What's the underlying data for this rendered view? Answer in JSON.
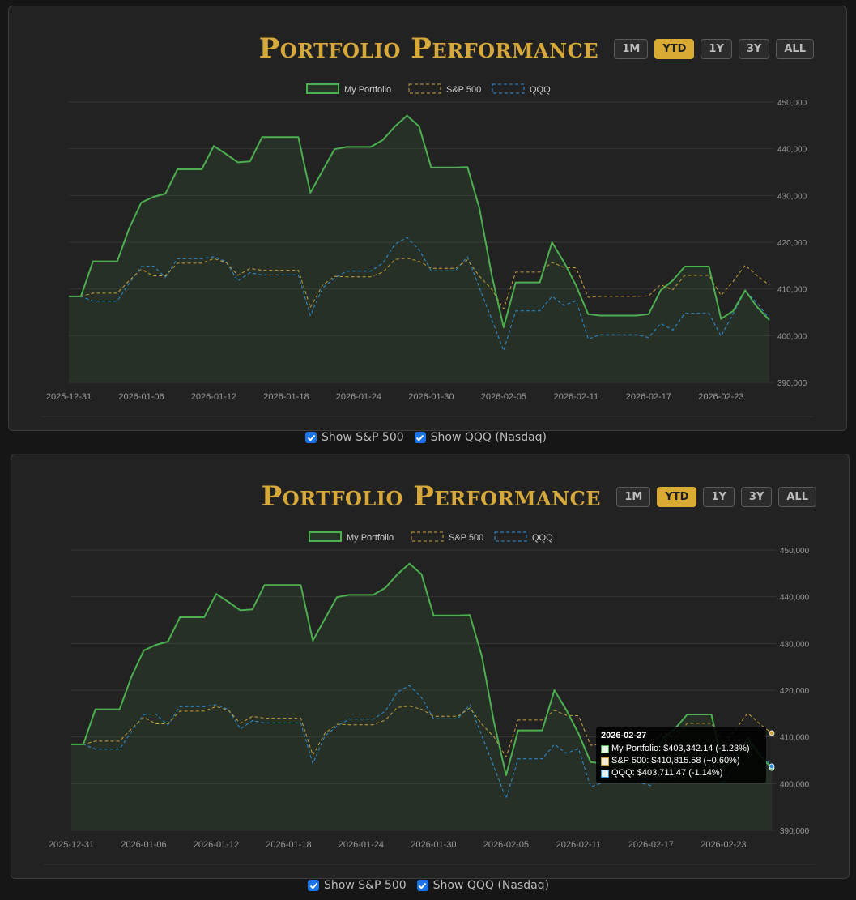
{
  "panels": [
    {
      "title": "Portfolio Performance",
      "range_buttons": [
        {
          "label": "1M",
          "active": false
        },
        {
          "label": "YTD",
          "active": true
        },
        {
          "label": "1Y",
          "active": false
        },
        {
          "label": "3Y",
          "active": false
        },
        {
          "label": "ALL",
          "active": false
        }
      ],
      "checkboxes": [
        {
          "label": "Show S&P 500",
          "checked": true
        },
        {
          "label": "Show QQQ (Nasdaq)",
          "checked": true
        }
      ]
    },
    {
      "title": "Portfolio Performance",
      "range_buttons": [
        {
          "label": "1M",
          "active": false
        },
        {
          "label": "YTD",
          "active": true
        },
        {
          "label": "1Y",
          "active": false
        },
        {
          "label": "3Y",
          "active": false
        },
        {
          "label": "ALL",
          "active": false
        }
      ],
      "checkboxes": [
        {
          "label": "Show S&P 500",
          "checked": true
        },
        {
          "label": "Show QQQ (Nasdaq)",
          "checked": true
        }
      ],
      "tooltip": {
        "title": "2026-02-27",
        "rows": [
          "My Portfolio: $403,342.14 (-1.23%)",
          "S&P 500: $410,815.58 (+0.60%)",
          "QQQ: $403,711.47 (-1.14%)"
        ]
      }
    }
  ],
  "colors": {
    "accent": "#d6a93a",
    "portfolio": "#4caf50",
    "sp500": "#c9a13b",
    "qqq": "#2f8fd8"
  },
  "chart_data": [
    {
      "type": "line",
      "x": [
        "2025-12-31",
        "2026-01-01",
        "2026-01-02",
        "2026-01-03",
        "2026-01-04",
        "2026-01-05",
        "2026-01-06",
        "2026-01-07",
        "2026-01-08",
        "2026-01-09",
        "2026-01-10",
        "2026-01-11",
        "2026-01-12",
        "2026-01-13",
        "2026-01-14",
        "2026-01-15",
        "2026-01-16",
        "2026-01-17",
        "2026-01-18",
        "2026-01-19",
        "2026-01-20",
        "2026-01-21",
        "2026-01-22",
        "2026-01-23",
        "2026-01-24",
        "2026-01-25",
        "2026-01-26",
        "2026-01-27",
        "2026-01-28",
        "2026-01-29",
        "2026-01-30",
        "2026-01-31",
        "2026-02-01",
        "2026-02-02",
        "2026-02-03",
        "2026-02-04",
        "2026-02-05",
        "2026-02-06",
        "2026-02-07",
        "2026-02-08",
        "2026-02-09",
        "2026-02-10",
        "2026-02-11",
        "2026-02-12",
        "2026-02-13",
        "2026-02-14",
        "2026-02-15",
        "2026-02-16",
        "2026-02-17",
        "2026-02-18",
        "2026-02-19",
        "2026-02-20",
        "2026-02-21",
        "2026-02-22",
        "2026-02-23",
        "2026-02-24",
        "2026-02-25",
        "2026-02-26",
        "2026-02-27"
      ],
      "x_tick_labels": [
        "2025-12-31",
        "2026-01-06",
        "2026-01-12",
        "2026-01-18",
        "2026-01-24",
        "2026-01-30",
        "2026-02-05",
        "2026-02-11",
        "2026-02-17",
        "2026-02-23"
      ],
      "series": [
        {
          "name": "My Portfolio",
          "style": "solid-filled",
          "values": [
            408400,
            408400,
            415900,
            415900,
            415900,
            423000,
            428500,
            429700,
            430400,
            435600,
            435600,
            435600,
            440600,
            438900,
            437100,
            437300,
            442500,
            442500,
            442500,
            442500,
            430600,
            435300,
            439900,
            440400,
            440400,
            440400,
            441900,
            444800,
            447100,
            444800,
            436000,
            436000,
            436000,
            436100,
            427200,
            413100,
            401800,
            411400,
            411400,
            411400,
            420000,
            415700,
            410700,
            404600,
            404300,
            404300,
            404300,
            404300,
            404600,
            409700,
            411800,
            414800,
            414800,
            414800,
            403600,
            405300,
            409700,
            406100,
            403342
          ]
        },
        {
          "name": "S&P 500",
          "style": "dashed",
          "values": [
            408400,
            408400,
            409100,
            409100,
            409100,
            411800,
            414200,
            412800,
            412800,
            415500,
            415500,
            415500,
            416500,
            415700,
            412900,
            414400,
            414000,
            414000,
            414000,
            414000,
            406100,
            410800,
            412700,
            412600,
            412600,
            412600,
            413600,
            416300,
            416600,
            415900,
            414400,
            414400,
            414400,
            416200,
            412700,
            410000,
            405700,
            413600,
            413600,
            413600,
            415700,
            414600,
            414500,
            408200,
            408400,
            408400,
            408400,
            408400,
            408500,
            410900,
            409800,
            412900,
            412900,
            412900,
            408600,
            411600,
            415100,
            412800,
            410816
          ]
        },
        {
          "name": "QQQ",
          "style": "dashed",
          "values": [
            408400,
            408400,
            407400,
            407400,
            407400,
            411200,
            414800,
            414900,
            412500,
            416500,
            416500,
            416500,
            416900,
            415900,
            411700,
            413500,
            413000,
            413000,
            413000,
            413000,
            404300,
            410200,
            412300,
            413800,
            413800,
            413800,
            415500,
            419600,
            421000,
            418400,
            413900,
            413900,
            413900,
            416900,
            410200,
            403600,
            396800,
            405300,
            405300,
            405300,
            408400,
            406500,
            407500,
            399300,
            400200,
            400200,
            400200,
            400200,
            399600,
            402600,
            401200,
            404800,
            404800,
            404800,
            399900,
            404700,
            409600,
            406900,
            403711
          ]
        }
      ],
      "ylim": [
        390000,
        450000
      ],
      "y_ticks": [
        "390,000",
        "400,000",
        "410,000",
        "420,000",
        "430,000",
        "440,000",
        "450,000"
      ],
      "y_axis_position": "right",
      "legend": {
        "position": "top",
        "entries": [
          "My Portfolio",
          "S&P 500",
          "QQQ"
        ]
      },
      "grid": true
    },
    {
      "type": "line",
      "x": [
        "2025-12-31",
        "2026-01-01",
        "2026-01-02",
        "2026-01-03",
        "2026-01-04",
        "2026-01-05",
        "2026-01-06",
        "2026-01-07",
        "2026-01-08",
        "2026-01-09",
        "2026-01-10",
        "2026-01-11",
        "2026-01-12",
        "2026-01-13",
        "2026-01-14",
        "2026-01-15",
        "2026-01-16",
        "2026-01-17",
        "2026-01-18",
        "2026-01-19",
        "2026-01-20",
        "2026-01-21",
        "2026-01-22",
        "2026-01-23",
        "2026-01-24",
        "2026-01-25",
        "2026-01-26",
        "2026-01-27",
        "2026-01-28",
        "2026-01-29",
        "2026-01-30",
        "2026-01-31",
        "2026-02-01",
        "2026-02-02",
        "2026-02-03",
        "2026-02-04",
        "2026-02-05",
        "2026-02-06",
        "2026-02-07",
        "2026-02-08",
        "2026-02-09",
        "2026-02-10",
        "2026-02-11",
        "2026-02-12",
        "2026-02-13",
        "2026-02-14",
        "2026-02-15",
        "2026-02-16",
        "2026-02-17",
        "2026-02-18",
        "2026-02-19",
        "2026-02-20",
        "2026-02-21",
        "2026-02-22",
        "2026-02-23",
        "2026-02-24",
        "2026-02-25",
        "2026-02-26",
        "2026-02-27"
      ],
      "x_tick_labels": [
        "2025-12-31",
        "2026-01-06",
        "2026-01-12",
        "2026-01-18",
        "2026-01-24",
        "2026-01-30",
        "2026-02-05",
        "2026-02-11",
        "2026-02-17",
        "2026-02-23"
      ],
      "series": [
        {
          "name": "My Portfolio",
          "style": "solid-filled",
          "values": [
            408400,
            408400,
            415900,
            415900,
            415900,
            423000,
            428500,
            429700,
            430400,
            435600,
            435600,
            435600,
            440600,
            438900,
            437100,
            437300,
            442500,
            442500,
            442500,
            442500,
            430600,
            435300,
            439900,
            440400,
            440400,
            440400,
            441900,
            444800,
            447100,
            444800,
            436000,
            436000,
            436000,
            436100,
            427200,
            413100,
            401800,
            411400,
            411400,
            411400,
            420000,
            415700,
            410700,
            404600,
            404300,
            404300,
            404300,
            404300,
            404600,
            409700,
            411800,
            414800,
            414800,
            414800,
            403600,
            405300,
            409700,
            406100,
            403342
          ]
        },
        {
          "name": "S&P 500",
          "style": "dashed",
          "values": [
            408400,
            408400,
            409100,
            409100,
            409100,
            411800,
            414200,
            412800,
            412800,
            415500,
            415500,
            415500,
            416500,
            415700,
            412900,
            414400,
            414000,
            414000,
            414000,
            414000,
            406100,
            410800,
            412700,
            412600,
            412600,
            412600,
            413600,
            416300,
            416600,
            415900,
            414400,
            414400,
            414400,
            416200,
            412700,
            410000,
            405700,
            413600,
            413600,
            413600,
            415700,
            414600,
            414500,
            408200,
            408400,
            408400,
            408400,
            408400,
            408500,
            410900,
            409800,
            412900,
            412900,
            412900,
            408600,
            411600,
            415100,
            412800,
            410816
          ]
        },
        {
          "name": "QQQ",
          "style": "dashed",
          "values": [
            408400,
            408400,
            407400,
            407400,
            407400,
            411200,
            414800,
            414900,
            412500,
            416500,
            416500,
            416500,
            416900,
            415900,
            411700,
            413500,
            413000,
            413000,
            413000,
            413000,
            404300,
            410200,
            412300,
            413800,
            413800,
            413800,
            415500,
            419600,
            421000,
            418400,
            413900,
            413900,
            413900,
            416900,
            410200,
            403600,
            396800,
            405300,
            405300,
            405300,
            408400,
            406500,
            407500,
            399300,
            400200,
            400200,
            400200,
            400200,
            399600,
            402600,
            401200,
            404800,
            404800,
            404800,
            399900,
            404700,
            409600,
            406900,
            403711
          ]
        }
      ],
      "ylim": [
        390000,
        450000
      ],
      "y_ticks": [
        "390,000",
        "400,000",
        "410,000",
        "420,000",
        "430,000",
        "440,000",
        "450,000"
      ],
      "y_axis_position": "right",
      "legend": {
        "position": "top",
        "entries": [
          "My Portfolio",
          "S&P 500",
          "QQQ"
        ]
      },
      "grid": true,
      "highlighted_x": "2026-02-27"
    }
  ]
}
